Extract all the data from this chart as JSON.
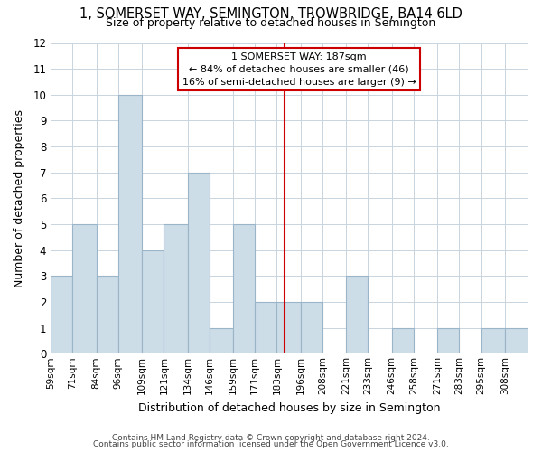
{
  "title": "1, SOMERSET WAY, SEMINGTON, TROWBRIDGE, BA14 6LD",
  "subtitle": "Size of property relative to detached houses in Semington",
  "xlabel": "Distribution of detached houses by size in Semington",
  "ylabel": "Number of detached properties",
  "bar_labels": [
    "59sqm",
    "71sqm",
    "84sqm",
    "96sqm",
    "109sqm",
    "121sqm",
    "134sqm",
    "146sqm",
    "159sqm",
    "171sqm",
    "183sqm",
    "196sqm",
    "208sqm",
    "221sqm",
    "233sqm",
    "246sqm",
    "258sqm",
    "271sqm",
    "283sqm",
    "295sqm",
    "308sqm"
  ],
  "bar_values": [
    3,
    5,
    3,
    10,
    4,
    5,
    7,
    1,
    5,
    2,
    2,
    2,
    0,
    3,
    0,
    1,
    0,
    1,
    0,
    1,
    1
  ],
  "bar_color": "#ccdde8",
  "bar_edge_color": "#9ab4c8",
  "property_line_label": "1 SOMERSET WAY: 187sqm",
  "annotation_line1": "← 84% of detached houses are smaller (46)",
  "annotation_line2": "16% of semi-detached houses are larger (9) →",
  "annotation_box_color": "#ffffff",
  "annotation_box_edge": "#cc0000",
  "vline_color": "#cc0000",
  "ylim": [
    0,
    12
  ],
  "yticks": [
    0,
    1,
    2,
    3,
    4,
    5,
    6,
    7,
    8,
    9,
    10,
    11,
    12
  ],
  "footnote1": "Contains HM Land Registry data © Crown copyright and database right 2024.",
  "footnote2": "Contains public sector information licensed under the Open Government Licence v3.0.",
  "bg_color": "#ffffff",
  "grid_color": "#c8d4de",
  "bin_edges": [
    59,
    71,
    84,
    96,
    109,
    121,
    134,
    146,
    159,
    171,
    183,
    196,
    208,
    221,
    233,
    246,
    258,
    271,
    283,
    295,
    308,
    321
  ],
  "vline_x": 187
}
